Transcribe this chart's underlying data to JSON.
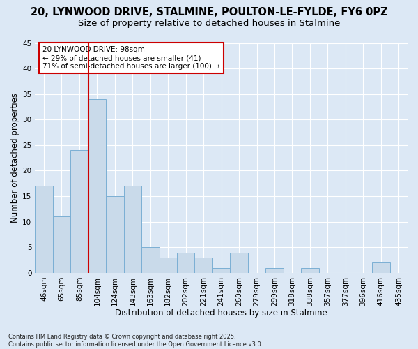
{
  "title_line1": "20, LYNWOOD DRIVE, STALMINE, POULTON-LE-FYLDE, FY6 0PZ",
  "title_line2": "Size of property relative to detached houses in Stalmine",
  "xlabel": "Distribution of detached houses by size in Stalmine",
  "ylabel": "Number of detached properties",
  "categories": [
    "46sqm",
    "65sqm",
    "85sqm",
    "104sqm",
    "124sqm",
    "143sqm",
    "163sqm",
    "182sqm",
    "202sqm",
    "221sqm",
    "241sqm",
    "260sqm",
    "279sqm",
    "299sqm",
    "318sqm",
    "338sqm",
    "357sqm",
    "377sqm",
    "396sqm",
    "416sqm",
    "435sqm"
  ],
  "values": [
    17,
    11,
    24,
    34,
    15,
    17,
    5,
    3,
    4,
    3,
    1,
    4,
    0,
    1,
    0,
    1,
    0,
    0,
    0,
    2,
    0
  ],
  "bar_color": "#c9daea",
  "bar_edge_color": "#7bafd4",
  "reference_line_color": "#cc0000",
  "reference_line_index": 3,
  "annotation_text": "20 LYNWOOD DRIVE: 98sqm\n← 29% of detached houses are smaller (41)\n71% of semi-detached houses are larger (100) →",
  "annotation_box_facecolor": "#ffffff",
  "annotation_box_edgecolor": "#cc0000",
  "ylim": [
    0,
    45
  ],
  "yticks": [
    0,
    5,
    10,
    15,
    20,
    25,
    30,
    35,
    40,
    45
  ],
  "background_color": "#dce8f5",
  "plot_bg_color": "#dce8f5",
  "grid_color": "#ffffff",
  "title_fontsize": 10.5,
  "subtitle_fontsize": 9.5,
  "axis_label_fontsize": 8.5,
  "tick_fontsize": 7.5,
  "annotation_fontsize": 7.5,
  "footer_text": "Contains HM Land Registry data © Crown copyright and database right 2025.\nContains public sector information licensed under the Open Government Licence v3.0."
}
